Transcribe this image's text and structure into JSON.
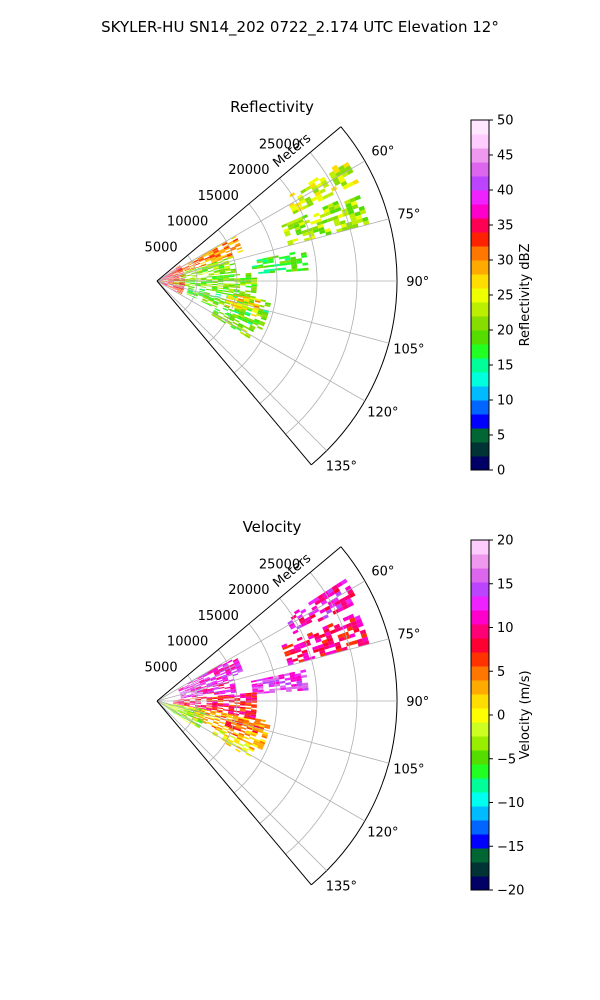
{
  "figure": {
    "suptitle": "SKYLER-HU  SN14_202  0722_2.174 UTC Elevation 12°"
  },
  "chart_data": [
    {
      "type": "heatmap",
      "projection": "polar-sector",
      "title": "Reflectivity",
      "range_label": "Meters",
      "range_ticks": [
        5000,
        10000,
        15000,
        20000,
        25000
      ],
      "range_tick_labels": [
        "5000",
        "10000",
        "15000",
        "20000",
        "25000"
      ],
      "range_max": 30000,
      "azimuth_range_deg": [
        50,
        140
      ],
      "azimuth_ticks": [
        60,
        75,
        90,
        105,
        120,
        135
      ],
      "azimuth_tick_labels": [
        "60°",
        "75°",
        "90°",
        "105°",
        "120°",
        "135°"
      ],
      "colorbar": {
        "label": "Reflectivity dBZ",
        "vmin": 0,
        "vmax": 50,
        "ticks": [
          0,
          5,
          10,
          15,
          20,
          25,
          30,
          35,
          40,
          45,
          50
        ],
        "tick_labels": [
          "0",
          "5",
          "10",
          "15",
          "20",
          "25",
          "30",
          "35",
          "40",
          "45",
          "50"
        ],
        "colors": [
          "#000066",
          "#003333",
          "#006633",
          "#0000ff",
          "#0066ff",
          "#00bbff",
          "#00ffdd",
          "#00ff99",
          "#22ff22",
          "#55dd00",
          "#88dd00",
          "#bbee00",
          "#eeff00",
          "#ffdd00",
          "#ffaa00",
          "#ff7700",
          "#ff2200",
          "#ff0055",
          "#ff00cc",
          "#ee22ff",
          "#bb44ff",
          "#dd66ee",
          "#ee99ee",
          "#ffccff",
          "#ffe8ff"
        ]
      },
      "echo_regions": [
        {
          "az": [
            57,
            64
          ],
          "r": [
            19000,
            27500
          ],
          "value": 24
        },
        {
          "az": [
            66,
            75
          ],
          "r": [
            17000,
            27500
          ],
          "value": 22
        },
        {
          "az": [
            78,
            86
          ],
          "r": [
            12000,
            19000
          ],
          "value": 18
        },
        {
          "az": [
            60,
            72
          ],
          "r": [
            3000,
            11000
          ],
          "value": 30
        },
        {
          "az": [
            72,
            84
          ],
          "r": [
            3000,
            9500
          ],
          "value": 21
        },
        {
          "az": [
            85,
            100
          ],
          "r": [
            2000,
            12500
          ],
          "value": 20
        },
        {
          "az": [
            100,
            115
          ],
          "r": [
            4000,
            14000
          ],
          "value": 19
        },
        {
          "az": [
            115,
            122
          ],
          "r": [
            8000,
            13000
          ],
          "value": 20
        },
        {
          "az": [
            55,
            120
          ],
          "r": [
            0,
            3000
          ],
          "value": 33
        },
        {
          "az": [
            100,
            110
          ],
          "r": [
            9000,
            13000
          ],
          "value": 27
        }
      ]
    },
    {
      "type": "heatmap",
      "projection": "polar-sector",
      "title": "Velocity",
      "range_label": "Meters",
      "range_ticks": [
        5000,
        10000,
        15000,
        20000,
        25000
      ],
      "range_tick_labels": [
        "5000",
        "10000",
        "15000",
        "20000",
        "25000"
      ],
      "range_max": 30000,
      "azimuth_range_deg": [
        50,
        140
      ],
      "azimuth_ticks": [
        60,
        75,
        90,
        105,
        120,
        135
      ],
      "azimuth_tick_labels": [
        "60°",
        "75°",
        "90°",
        "105°",
        "120°",
        "135°"
      ],
      "colorbar": {
        "label": "Velocity (m/s)",
        "vmin": -20,
        "vmax": 20,
        "ticks": [
          -20,
          -15,
          -10,
          -5,
          0,
          5,
          10,
          15,
          20
        ],
        "tick_labels": [
          "−20",
          "−15",
          "−10",
          "−5",
          "0",
          "5",
          "10",
          "15",
          "20"
        ],
        "colors": [
          "#000066",
          "#003333",
          "#006633",
          "#0000ff",
          "#0066ff",
          "#00bbff",
          "#00ffee",
          "#00ff99",
          "#22ff22",
          "#55dd00",
          "#99ee00",
          "#ccff22",
          "#ffff00",
          "#ffdd00",
          "#ffaa00",
          "#ff7700",
          "#ff3300",
          "#ff0033",
          "#ff0077",
          "#ff00cc",
          "#ee22ff",
          "#bb44ff",
          "#dd66ee",
          "#ee99ee",
          "#ffccff"
        ]
      },
      "echo_regions": [
        {
          "az": [
            57,
            64
          ],
          "r": [
            19000,
            27500
          ],
          "value": 11
        },
        {
          "az": [
            66,
            75
          ],
          "r": [
            17000,
            27500
          ],
          "value": 9
        },
        {
          "az": [
            78,
            86
          ],
          "r": [
            12000,
            19000
          ],
          "value": 14
        },
        {
          "az": [
            60,
            72
          ],
          "r": [
            3000,
            11000
          ],
          "value": 13
        },
        {
          "az": [
            72,
            84
          ],
          "r": [
            3000,
            9500
          ],
          "value": 12
        },
        {
          "az": [
            85,
            100
          ],
          "r": [
            2000,
            12500
          ],
          "value": 8
        },
        {
          "az": [
            100,
            115
          ],
          "r": [
            4000,
            14000
          ],
          "value": 3
        },
        {
          "az": [
            115,
            122
          ],
          "r": [
            8000,
            13000
          ],
          "value": 1
        },
        {
          "az": [
            100,
            125
          ],
          "r": [
            0,
            6000
          ],
          "value": -3
        },
        {
          "az": [
            100,
            110
          ],
          "r": [
            9000,
            13000
          ],
          "value": 5
        }
      ]
    }
  ]
}
